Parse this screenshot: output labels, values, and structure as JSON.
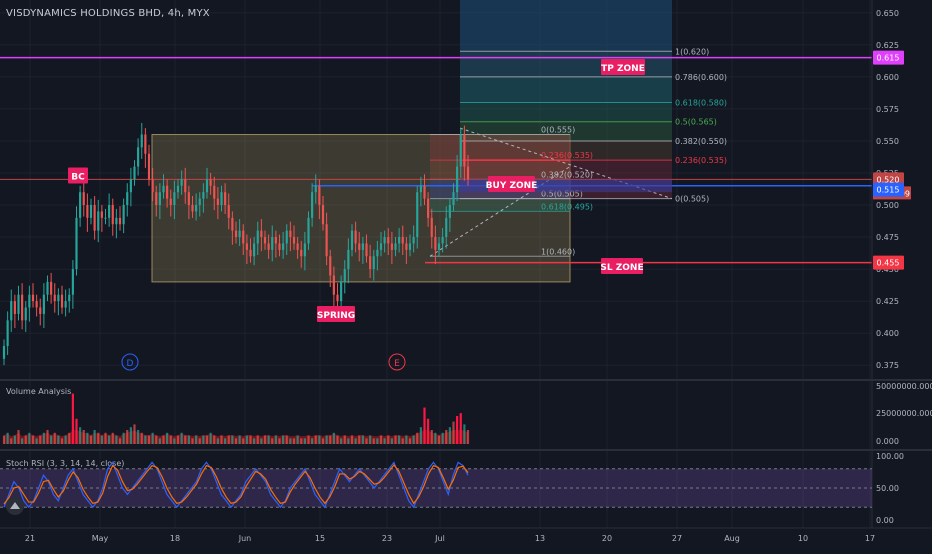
{
  "header": {
    "title": "VISDYNAMICS HOLDINGS BHD, 4h, MYX"
  },
  "colors": {
    "bg": "#131722",
    "up": "#26a69a",
    "down": "#ef5350",
    "grid": "#1e222d",
    "axis_text": "#b2b5be",
    "magenta": "#e040fb",
    "blue": "#2962ff",
    "red_line": "#f23645",
    "range_box": "#8d7b4f",
    "label_bg": "#e91e63"
  },
  "price_axis": {
    "ticks": [
      "0.650",
      "0.625",
      "0.600",
      "0.575",
      "0.550",
      "0.525",
      "0.500",
      "0.475",
      "0.450",
      "0.425",
      "0.400",
      "0.375"
    ]
  },
  "price_labels": {
    "tp": "0.615",
    "current": "0.520",
    "countdown": "01:57:09",
    "buy": "0.515",
    "sl": "0.455"
  },
  "time_axis": {
    "ticks": [
      "21",
      "May",
      "18",
      "Jun",
      "15",
      "23",
      "Jul",
      "13",
      "20",
      "27",
      "Aug",
      "10",
      "17"
    ]
  },
  "annotations": {
    "tp_zone": "TP ZONE",
    "buy_zone": "BUY ZONE",
    "sl_zone": "SL ZONE",
    "bc": "BC",
    "spring": "SPRING",
    "marker_d": "D",
    "marker_e": "E"
  },
  "fib_right": [
    "1(0.620)",
    "0.786(0.600)",
    "0.618(0.580)",
    "0.5(0.565)",
    "0.382(0.550)",
    "0.236(0.535)",
    "0(0.505)"
  ],
  "fib_left": [
    "0(0.555)",
    "0.236(0.535)",
    "0.382(0.520)",
    "0.5(0.505)",
    "0.618(0.495)",
    "1(0.460)"
  ],
  "volume_panel": {
    "title": "Volume Analysis",
    "ticks": [
      "50000000.000",
      "25000000.000",
      "0.000"
    ]
  },
  "rsi_panel": {
    "title": "Stoch RSI (3, 3, 14, 14, close)",
    "ticks": [
      "100.00",
      "50.00",
      "0.00"
    ]
  },
  "chart_data": {
    "type": "candlestick",
    "title": "VISDYNAMICS HOLDINGS BHD, 4h, MYX",
    "ylim": [
      0.365,
      0.66
    ],
    "y_ticks": [
      0.375,
      0.4,
      0.425,
      0.45,
      0.475,
      0.5,
      0.525,
      0.55,
      0.575,
      0.6,
      0.625,
      0.65
    ],
    "close_path": [
      0.39,
      0.41,
      0.425,
      0.415,
      0.43,
      0.41,
      0.42,
      0.43,
      0.425,
      0.42,
      0.415,
      0.43,
      0.44,
      0.43,
      0.425,
      0.43,
      0.42,
      0.425,
      0.43,
      0.45,
      0.49,
      0.51,
      0.5,
      0.49,
      0.5,
      0.48,
      0.495,
      0.49,
      0.49,
      0.5,
      0.485,
      0.49,
      0.485,
      0.5,
      0.51,
      0.52,
      0.53,
      0.545,
      0.555,
      0.54,
      0.52,
      0.51,
      0.5,
      0.51,
      0.515,
      0.505,
      0.5,
      0.51,
      0.515,
      0.52,
      0.51,
      0.5,
      0.495,
      0.5,
      0.505,
      0.51,
      0.52,
      0.515,
      0.505,
      0.5,
      0.51,
      0.5,
      0.49,
      0.48,
      0.475,
      0.48,
      0.47,
      0.465,
      0.46,
      0.47,
      0.48,
      0.475,
      0.47,
      0.465,
      0.475,
      0.47,
      0.465,
      0.47,
      0.48,
      0.475,
      0.47,
      0.465,
      0.46,
      0.47,
      0.49,
      0.51,
      0.515,
      0.5,
      0.485,
      0.46,
      0.445,
      0.43,
      0.425,
      0.44,
      0.45,
      0.465,
      0.48,
      0.47,
      0.465,
      0.47,
      0.46,
      0.45,
      0.46,
      0.465,
      0.47,
      0.475,
      0.47,
      0.465,
      0.47,
      0.475,
      0.47,
      0.465,
      0.47,
      0.475,
      0.51,
      0.515,
      0.505,
      0.49,
      0.475,
      0.465,
      0.47,
      0.475,
      0.49,
      0.5,
      0.51,
      0.53,
      0.555,
      0.53,
      0.52
    ],
    "volume": [
      3,
      4,
      2,
      3,
      5,
      2,
      3,
      4,
      3,
      2,
      3,
      4,
      5,
      3,
      4,
      3,
      2,
      3,
      4,
      18,
      9,
      6,
      5,
      4,
      3,
      5,
      4,
      3,
      4,
      3,
      4,
      3,
      2,
      4,
      5,
      6,
      7,
      5,
      4,
      3,
      3,
      4,
      3,
      2,
      3,
      4,
      3,
      2,
      3,
      4,
      3,
      3,
      2,
      3,
      2,
      3,
      3,
      4,
      3,
      2,
      3,
      2,
      3,
      3,
      2,
      3,
      2,
      3,
      3,
      2,
      3,
      2,
      3,
      3,
      2,
      3,
      2,
      3,
      3,
      2,
      2,
      3,
      2,
      2,
      3,
      2,
      3,
      3,
      2,
      3,
      3,
      4,
      3,
      2,
      3,
      2,
      3,
      2,
      3,
      3,
      2,
      3,
      2,
      2,
      3,
      2,
      3,
      2,
      3,
      3,
      2,
      3,
      2,
      3,
      4,
      6,
      13,
      9,
      5,
      4,
      3,
      4,
      5,
      6,
      8,
      10,
      11,
      7,
      5
    ],
    "volume_ylim": [
      0,
      50000000
    ],
    "stoch_k": [
      20,
      40,
      60,
      50,
      30,
      20,
      30,
      50,
      70,
      60,
      40,
      30,
      50,
      70,
      80,
      60,
      40,
      30,
      20,
      30,
      50,
      80,
      90,
      70,
      50,
      40,
      50,
      60,
      70,
      80,
      90,
      80,
      60,
      40,
      30,
      20,
      30,
      40,
      50,
      60,
      80,
      90,
      80,
      60,
      40,
      30,
      20,
      30,
      40,
      60,
      70,
      80,
      70,
      60,
      40,
      30,
      20,
      30,
      50,
      60,
      70,
      80,
      60,
      40,
      30,
      20,
      40,
      60,
      80,
      70,
      60,
      70,
      80,
      70,
      60,
      50,
      60,
      70,
      80,
      90,
      70,
      50,
      30,
      20,
      40,
      60,
      80,
      90,
      80,
      60,
      40,
      70,
      90,
      85,
      70
    ],
    "stoch_d": [
      25,
      35,
      50,
      52,
      40,
      28,
      28,
      42,
      60,
      62,
      48,
      36,
      45,
      62,
      75,
      66,
      48,
      36,
      26,
      28,
      42,
      68,
      85,
      78,
      60,
      46,
      48,
      56,
      66,
      76,
      85,
      82,
      68,
      50,
      36,
      26,
      28,
      36,
      46,
      56,
      72,
      85,
      82,
      68,
      50,
      36,
      26,
      28,
      36,
      52,
      64,
      76,
      72,
      64,
      48,
      36,
      26,
      28,
      44,
      56,
      66,
      76,
      66,
      50,
      36,
      26,
      36,
      52,
      72,
      72,
      64,
      68,
      76,
      72,
      64,
      56,
      58,
      66,
      76,
      86,
      76,
      58,
      40,
      26,
      36,
      52,
      72,
      85,
      82,
      66,
      48,
      62,
      82,
      84,
      74
    ],
    "stoch_ylim": [
      0,
      100
    ]
  }
}
